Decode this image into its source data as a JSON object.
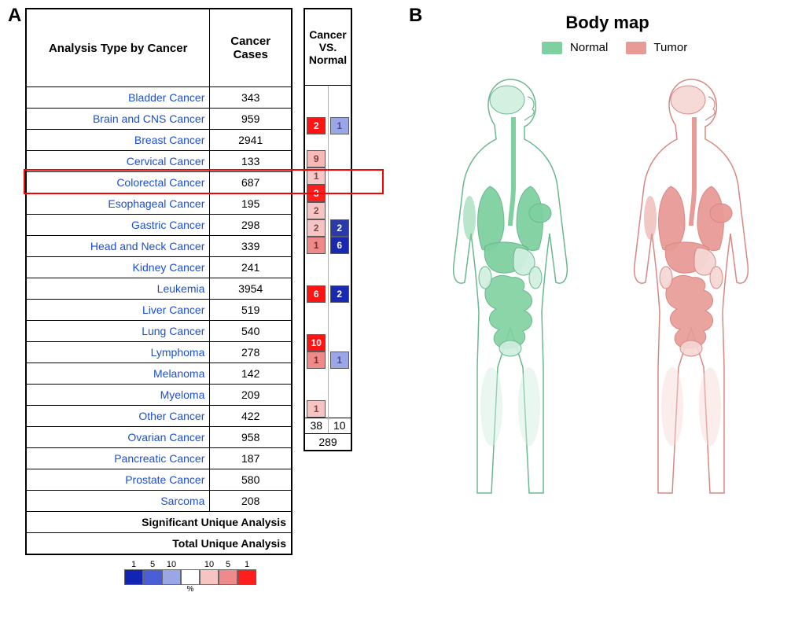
{
  "panelA_label": "A",
  "panelB_label": "B",
  "table": {
    "col1_header": "Analysis Type by Cancer",
    "col2_header": "Cancer Cases",
    "cvn_header_line1": "Cancer",
    "cvn_header_line2": "VS.",
    "cvn_header_line3": "Normal",
    "link_color": "#1a4fd6",
    "border_color": "#000000",
    "rows": [
      {
        "name": "Bladder Cancer",
        "cases": "343",
        "up": null,
        "down": null
      },
      {
        "name": "Brain and CNS Cancer",
        "cases": "959",
        "up": null,
        "down": null
      },
      {
        "name": "Breast Cancer",
        "cases": "2941",
        "up": "2",
        "up_bg": "#ff1414",
        "up_fg": "#ffffff",
        "down": "1",
        "down_bg": "#9aa6e6",
        "down_fg": "#4a4a9a"
      },
      {
        "name": "Cervical Cancer",
        "cases": "133",
        "up": null,
        "down": null
      },
      {
        "name": "Colorectal Cancer",
        "cases": "687",
        "up": "9",
        "up_bg": "#f7b8b8",
        "up_fg": "#7a3a3a",
        "down": null,
        "highlight": true
      },
      {
        "name": "Esophageal Cancer",
        "cases": "195",
        "up": "1",
        "up_bg": "#f7c8c8",
        "up_fg": "#7a4a4a",
        "down": null
      },
      {
        "name": "Gastric Cancer",
        "cases": "298",
        "up": "3",
        "up_bg": "#ff1e1e",
        "up_fg": "#ffffff",
        "down": null
      },
      {
        "name": "Head and Neck Cancer",
        "cases": "339",
        "up": "2",
        "up_bg": "#f7c4c4",
        "up_fg": "#7a4a4a",
        "down": null
      },
      {
        "name": "Kidney Cancer",
        "cases": "241",
        "up": "2",
        "up_bg": "#f7c4c4",
        "up_fg": "#7a4a4a",
        "down": "2",
        "down_bg": "#2a3aa8",
        "down_fg": "#ffffff"
      },
      {
        "name": "Leukemia",
        "cases": "3954",
        "up": "1",
        "up_bg": "#ef8a8a",
        "up_fg": "#7a2a2a",
        "down": "6",
        "down_bg": "#1a2ab0",
        "down_fg": "#ffffff"
      },
      {
        "name": "Liver Cancer",
        "cases": "519",
        "up": null,
        "down": null
      },
      {
        "name": "Lung Cancer",
        "cases": "540",
        "up": null,
        "down": null
      },
      {
        "name": "Lymphoma",
        "cases": "278",
        "up": "6",
        "up_bg": "#ff1414",
        "up_fg": "#ffffff",
        "down": "2",
        "down_bg": "#1a2ab0",
        "down_fg": "#ffffff"
      },
      {
        "name": "Melanoma",
        "cases": "142",
        "up": null,
        "down": null
      },
      {
        "name": "Myeloma",
        "cases": "209",
        "up": null,
        "down": null
      },
      {
        "name": "Other Cancer",
        "cases": "422",
        "up": "10",
        "up_bg": "#ff1414",
        "up_fg": "#ffffff",
        "down": null
      },
      {
        "name": "Ovarian Cancer",
        "cases": "958",
        "up": "1",
        "up_bg": "#ef8a8a",
        "up_fg": "#7a2a2a",
        "down": "1",
        "down_bg": "#9aa6e6",
        "down_fg": "#4a4a9a"
      },
      {
        "name": "Pancreatic Cancer",
        "cases": "187",
        "up": null,
        "down": null
      },
      {
        "name": "Prostate Cancer",
        "cases": "580",
        "up": null,
        "down": null
      },
      {
        "name": "Sarcoma",
        "cases": "208",
        "up": "1",
        "up_bg": "#f7c4c4",
        "up_fg": "#7a4a4a",
        "down": null
      }
    ],
    "summary1_label": "Significant Unique Analysis",
    "summary1_up": "38",
    "summary1_down": "10",
    "summary2_label": "Total Unique Analysis",
    "summary2_value": "289"
  },
  "legend": {
    "labels_left": [
      "1",
      "5",
      "10"
    ],
    "labels_right": [
      "10",
      "5",
      "1"
    ],
    "colors": [
      "#1224b4",
      "#4a5ed6",
      "#9aa6e6",
      "#ffffff",
      "#f7c4c4",
      "#ef8a8a",
      "#ff1e1e"
    ],
    "pct_label": "%"
  },
  "bodymap": {
    "title": "Body map",
    "normal_label": "Normal",
    "tumor_label": "Tumor",
    "normal_color": "#7ed0a0",
    "normal_light": "#cfeede",
    "tumor_color": "#e89a96",
    "tumor_light": "#f4d6d4",
    "outline_color": "#b8b8b8",
    "outline_green": "#6ab890",
    "outline_red": "#d88884"
  }
}
